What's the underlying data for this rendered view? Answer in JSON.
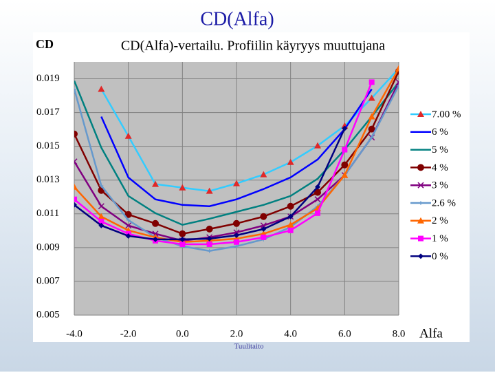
{
  "slide_title": "CD(Alfa)",
  "footer": "Tuulitaito",
  "chart_data": {
    "type": "line",
    "title": "CD(Alfa)-vertailu. Profiilin käyryys muuttujana",
    "y_label": "CD",
    "x_label": "Alfa",
    "x": [
      -4,
      -3,
      -2,
      -1,
      0,
      1,
      2,
      3,
      4,
      5,
      6,
      7,
      8
    ],
    "xlim": [
      -4,
      8
    ],
    "xticks": [
      {
        "value": -4,
        "label": "-4.0"
      },
      {
        "value": -2,
        "label": "-2.0"
      },
      {
        "value": 0,
        "label": "0.0"
      },
      {
        "value": 2,
        "label": "2.0"
      },
      {
        "value": 4,
        "label": "4.0"
      },
      {
        "value": 6,
        "label": "6.0"
      },
      {
        "value": 8,
        "label": "8.0"
      }
    ],
    "ylim": [
      0.005,
      0.02
    ],
    "yticks": [
      0.005,
      0.007,
      0.009,
      0.011,
      0.013,
      0.015,
      0.017,
      0.019
    ],
    "grid": true,
    "legend": "right",
    "series": [
      {
        "name": "7.00 %",
        "color": "#33ccff",
        "marker": "triangle",
        "marker_color": "#e02828",
        "values": [
          null,
          0.01839,
          0.01561,
          0.01276,
          0.01255,
          0.01235,
          0.0128,
          0.01333,
          0.01406,
          0.01504,
          0.01622,
          0.01786,
          0.01961
        ]
      },
      {
        "name": "6 %",
        "color": "#0000ff",
        "marker": "none",
        "marker_color": "#0000ff",
        "values": [
          null,
          0.01676,
          0.01316,
          0.01186,
          0.01153,
          0.01145,
          0.01186,
          0.01247,
          0.01316,
          0.01422,
          0.01602,
          0.01839,
          null
        ]
      },
      {
        "name": "5 %",
        "color": "#008080",
        "marker": "none",
        "marker_color": "#008080",
        "values": [
          0.01888,
          0.01492,
          0.01206,
          0.01104,
          0.01035,
          0.01071,
          0.01112,
          0.01153,
          0.01206,
          0.01308,
          0.0148,
          0.01676,
          0.0188
        ]
      },
      {
        "name": "4 %",
        "color": "#800000",
        "marker": "circle",
        "marker_color": "#800000",
        "values": [
          0.01573,
          0.01239,
          0.01096,
          0.01043,
          0.00982,
          0.0101,
          0.01043,
          0.01084,
          0.01145,
          0.01227,
          0.0139,
          0.01602,
          0.01945
        ]
      },
      {
        "name": "3 %",
        "color": "#800080",
        "marker": "x",
        "marker_color": "#800080",
        "values": [
          0.0141,
          0.01145,
          0.01031,
          0.00982,
          0.00941,
          0.00961,
          0.0099,
          0.01031,
          0.01084,
          0.01186,
          0.01329,
          0.01553,
          0.0188
        ]
      },
      {
        "name": "2.6 %",
        "color": "#6699cc",
        "marker": "star",
        "marker_color": "#6699cc",
        "values": [
          0.01839,
          0.01267,
          0.01063,
          0.00961,
          0.00908,
          0.0088,
          0.00908,
          0.00949,
          0.01022,
          0.01145,
          0.01329,
          0.01553,
          0.01859
        ]
      },
      {
        "name": "2 %",
        "color": "#ff6600",
        "marker": "triangle",
        "marker_color": "#ff6600",
        "values": [
          0.01259,
          0.01084,
          0.01002,
          0.00961,
          0.00933,
          0.00941,
          0.00953,
          0.00982,
          0.01035,
          0.01133,
          0.01329,
          0.01676,
          0.01961
        ]
      },
      {
        "name": "1 %",
        "color": "#ff00ff",
        "marker": "square",
        "marker_color": "#ff00ff",
        "values": [
          0.01186,
          0.01055,
          0.00982,
          0.00941,
          0.0092,
          0.0092,
          0.00933,
          0.00961,
          0.01002,
          0.01104,
          0.0148,
          0.0188,
          null
        ]
      },
      {
        "name": "0 %",
        "color": "#000080",
        "marker": "diamond",
        "marker_color": "#000080",
        "values": [
          0.01153,
          0.01031,
          0.00969,
          0.00949,
          0.00949,
          0.00953,
          0.00973,
          0.0101,
          0.01084,
          0.01259,
          0.01606,
          null,
          null
        ]
      }
    ]
  }
}
